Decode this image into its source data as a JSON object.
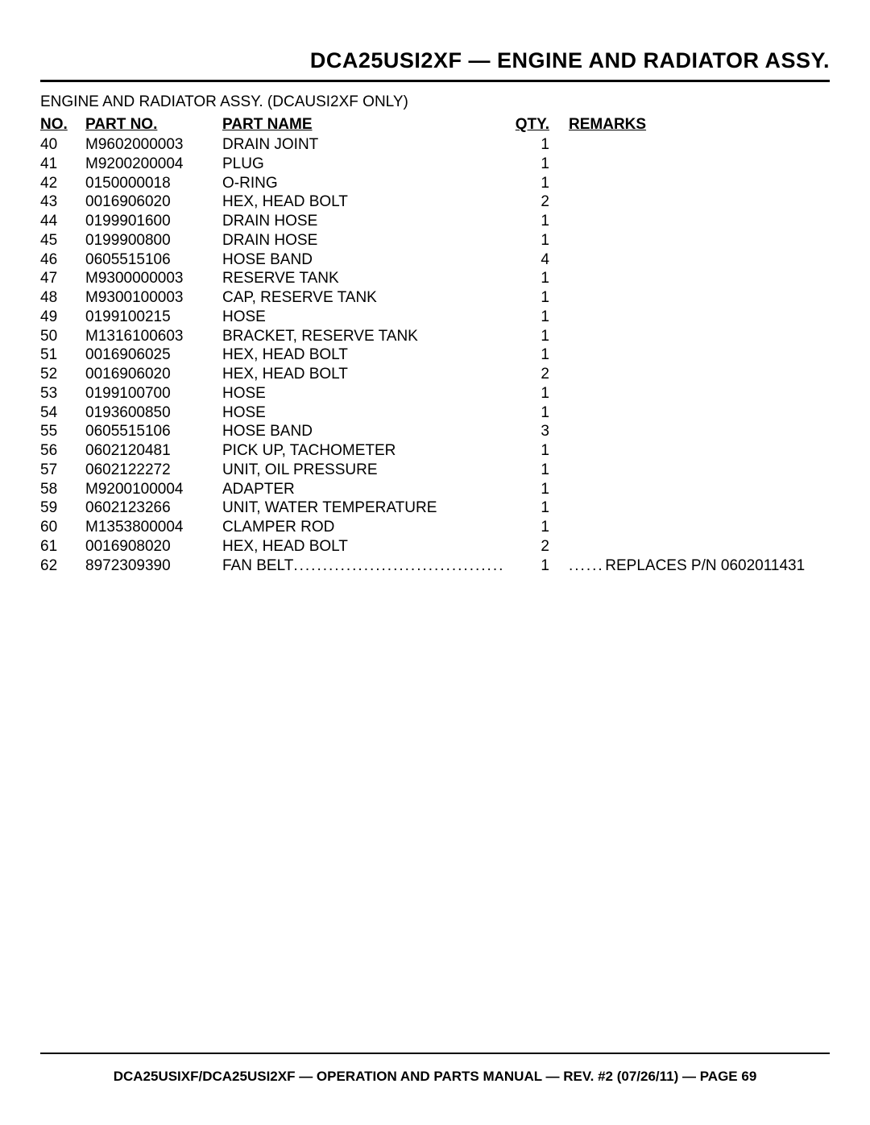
{
  "page": {
    "title": "DCA25USI2XF — ENGINE AND RADIATOR ASSY.",
    "subtitle": "ENGINE AND RADIATOR ASSY. (DCAUSI2XF ONLY)",
    "footer": "DCA25USIXF/DCA25USI2XF — OPERATION AND PARTS MANUAL — REV. #2 (07/26/11) — PAGE 69"
  },
  "columns": {
    "no": "NO.",
    "part_no": "PART NO.",
    "part_name": "PART NAME",
    "qty": "QTY.",
    "remarks": "REMARKS"
  },
  "rows": [
    {
      "no": "40",
      "part_no": "M9602000003",
      "part_name": "DRAIN JOINT",
      "qty": "1",
      "remarks": ""
    },
    {
      "no": "41",
      "part_no": "M9200200004",
      "part_name": "PLUG",
      "qty": "1",
      "remarks": ""
    },
    {
      "no": "42",
      "part_no": "0150000018",
      "part_name": "O-RING",
      "qty": "1",
      "remarks": ""
    },
    {
      "no": "43",
      "part_no": "0016906020",
      "part_name": "HEX, HEAD BOLT",
      "qty": "2",
      "remarks": ""
    },
    {
      "no": "44",
      "part_no": "0199901600",
      "part_name": "DRAIN HOSE",
      "qty": "1",
      "remarks": ""
    },
    {
      "no": "45",
      "part_no": "0199900800",
      "part_name": "DRAIN HOSE",
      "qty": "1",
      "remarks": ""
    },
    {
      "no": "46",
      "part_no": "0605515106",
      "part_name": "HOSE BAND",
      "qty": "4",
      "remarks": ""
    },
    {
      "no": "47",
      "part_no": "M9300000003",
      "part_name": "RESERVE TANK",
      "qty": "1",
      "remarks": ""
    },
    {
      "no": "48",
      "part_no": "M9300100003",
      "part_name": "CAP, RESERVE TANK",
      "qty": "1",
      "remarks": ""
    },
    {
      "no": "49",
      "part_no": "0199100215",
      "part_name": "HOSE",
      "qty": "1",
      "remarks": ""
    },
    {
      "no": "50",
      "part_no": "M1316100603",
      "part_name": "BRACKET, RESERVE TANK",
      "qty": "1",
      "remarks": ""
    },
    {
      "no": "51",
      "part_no": "0016906025",
      "part_name": "HEX, HEAD BOLT",
      "qty": "1",
      "remarks": ""
    },
    {
      "no": "52",
      "part_no": "0016906020",
      "part_name": "HEX, HEAD BOLT",
      "qty": "2",
      "remarks": ""
    },
    {
      "no": "53",
      "part_no": "0199100700",
      "part_name": "HOSE",
      "qty": "1",
      "remarks": ""
    },
    {
      "no": "54",
      "part_no": "0193600850",
      "part_name": "HOSE",
      "qty": "1",
      "remarks": ""
    },
    {
      "no": "55",
      "part_no": "0605515106",
      "part_name": "HOSE BAND",
      "qty": "3",
      "remarks": ""
    },
    {
      "no": "56",
      "part_no": "0602120481",
      "part_name": "PICK UP, TACHOMETER",
      "qty": "1",
      "remarks": ""
    },
    {
      "no": "57",
      "part_no": "0602122272",
      "part_name": "UNIT, OIL PRESSURE",
      "qty": "1",
      "remarks": ""
    },
    {
      "no": "58",
      "part_no": "M9200100004",
      "part_name": "ADAPTER",
      "qty": "1",
      "remarks": ""
    },
    {
      "no": "59",
      "part_no": "0602123266",
      "part_name": "UNIT, WATER TEMPERATURE",
      "qty": "1",
      "remarks": ""
    },
    {
      "no": "60",
      "part_no": "M1353800004",
      "part_name": "CLAMPER ROD",
      "qty": "1",
      "remarks": ""
    },
    {
      "no": "61",
      "part_no": "0016908020",
      "part_name": "HEX, HEAD BOLT",
      "qty": "2",
      "remarks": ""
    },
    {
      "no": "62",
      "part_no": "8972309390",
      "part_name": "FAN BELT",
      "qty": "1",
      "remarks": "REPLACES P/N 0602011431",
      "leader": true
    }
  ],
  "style": {
    "background_color": "#ffffff",
    "text_color": "#000000",
    "rule_color": "#000000",
    "title_fontsize": 27,
    "body_fontsize": 19,
    "footer_fontsize": 17
  }
}
